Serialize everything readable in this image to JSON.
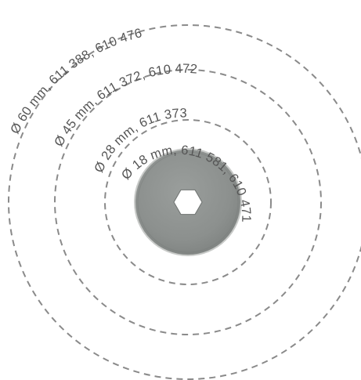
{
  "colors": {
    "background": "#ffffff",
    "dashed_ring": "#8a8a8a",
    "label_text": "#555555",
    "blade_fill": "#8e9290",
    "blade_edge": "#c8cac8",
    "hub_fill": "#ffffff"
  },
  "blade_sizes": [
    {
      "label": "Ø 60 mm, 611 388, 610 476"
    },
    {
      "label": "Ø 45 mm, 611 372, 610 472"
    },
    {
      "label": "Ø 28 mm, 611 373"
    },
    {
      "label": "Ø 18 mm, 611 581, 610 471"
    }
  ],
  "blade_image": {
    "icon": "rotary-blade-icon",
    "center_hole_shape": "hexagon"
  }
}
